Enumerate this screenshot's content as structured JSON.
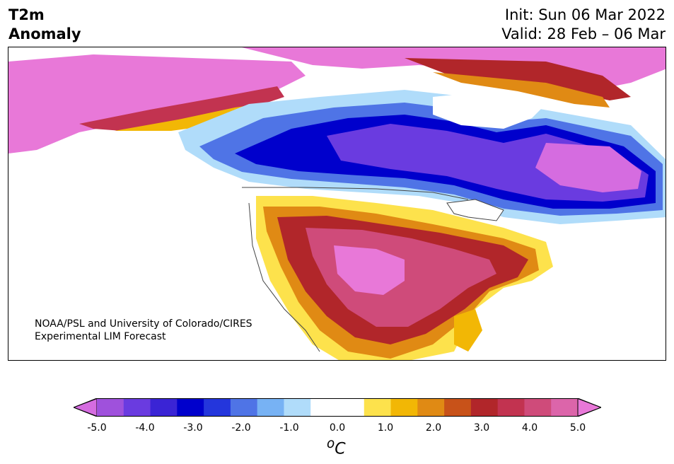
{
  "header": {
    "title_line1": "T2m",
    "title_line2": "Anomaly",
    "init": "Init: Sun 06 Mar 2022",
    "valid": "Valid: 28 Feb – 06 Mar"
  },
  "map": {
    "region": "North America",
    "credit_line1": "NOAA/PSL and University of Colorado/CIRES",
    "credit_line2": "Experimental LIM Forecast"
  },
  "colorbar": {
    "unit_text": "C",
    "unit_sup": "o",
    "ticks": [
      "-5.0",
      "-4.0",
      "-3.0",
      "-2.0",
      "-1.0",
      "0.0",
      "1.0",
      "2.0",
      "3.0",
      "4.0",
      "5.0"
    ],
    "colors": [
      "#d56ce0",
      "#9f51dc",
      "#6a3be0",
      "#3a24d5",
      "#0000cc",
      "#2436dc",
      "#4f74e6",
      "#77b2f4",
      "#b0dcfa",
      "#ffffff",
      "#ffffff",
      "#fde24c",
      "#f2b705",
      "#e08a14",
      "#c85219",
      "#b1262a",
      "#c23350",
      "#cf4b7a",
      "#dc65aa",
      "#e878d8"
    ]
  }
}
